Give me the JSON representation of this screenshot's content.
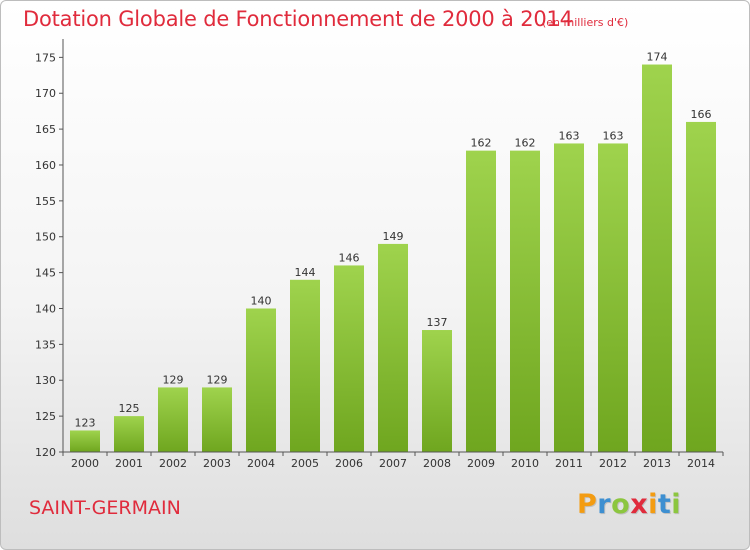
{
  "chart_data": {
    "type": "bar",
    "title": "Dotation Globale de Fonctionnement de 2000 à 2014",
    "subtitle": "(en milliers d'€)",
    "categories": [
      "2000",
      "2001",
      "2002",
      "2003",
      "2004",
      "2005",
      "2006",
      "2007",
      "2008",
      "2009",
      "2010",
      "2011",
      "2012",
      "2013",
      "2014"
    ],
    "values": [
      123,
      125,
      129,
      129,
      140,
      144,
      146,
      149,
      137,
      162,
      162,
      163,
      163,
      174,
      166
    ],
    "data_labels": [
      "123",
      "125",
      "129",
      "129",
      "140",
      "144",
      "146",
      "149",
      "137",
      "162",
      "162",
      "163",
      "163",
      "174",
      "166"
    ],
    "ylim": [
      120,
      177
    ],
    "yticks": [
      120,
      125,
      130,
      135,
      140,
      145,
      150,
      155,
      160,
      165,
      170,
      175
    ],
    "grid": false,
    "bar_color": "#8cc63f",
    "title_color": "#e02b3c"
  },
  "footer": {
    "commune": "SAINT-GERMAIN",
    "brand_letters": [
      "P",
      "r",
      "o",
      "x",
      "i",
      "t",
      "i"
    ],
    "brand_colors": [
      "#f39c12",
      "#3d8fd1",
      "#8cc63f",
      "#e02b3c",
      "#f39c12",
      "#3d8fd1",
      "#8cc63f"
    ]
  }
}
